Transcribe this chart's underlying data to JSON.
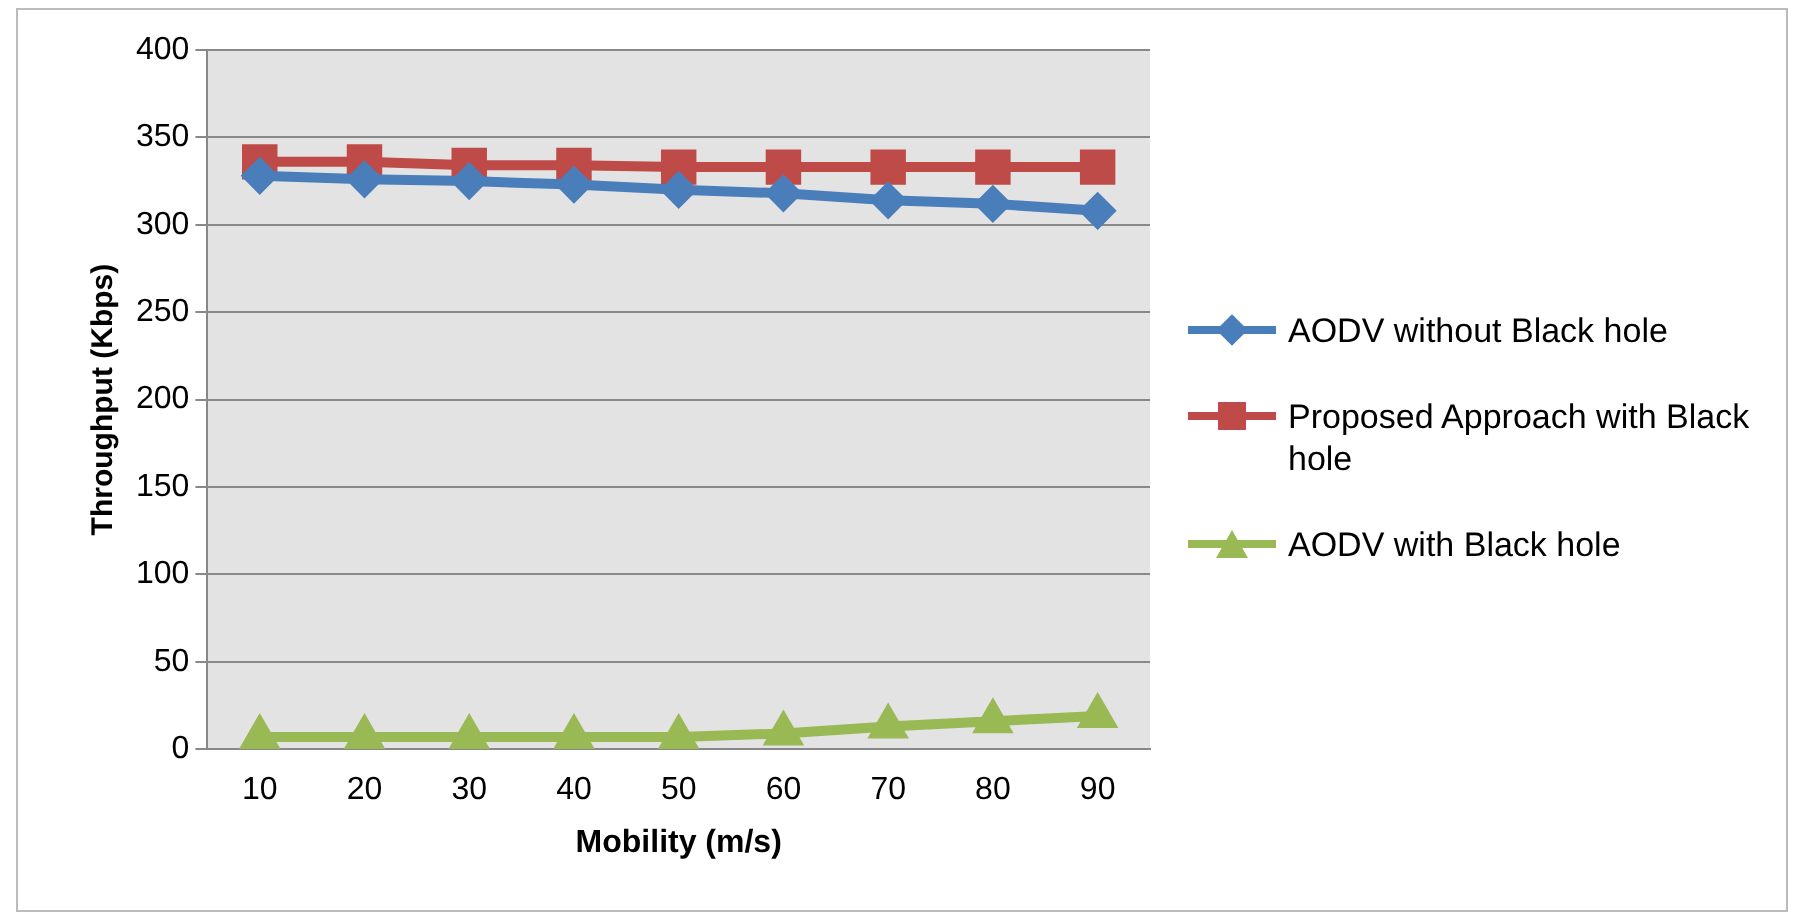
{
  "chart_data": {
    "type": "line",
    "xlabel": "Mobility (m/s)",
    "ylabel": "Throughput (Kbps)",
    "categories": [
      "10",
      "20",
      "30",
      "40",
      "50",
      "60",
      "70",
      "80",
      "90"
    ],
    "series": [
      {
        "name": "AODV without  Black hole",
        "color": "#4a7ebb",
        "marker": "diamond",
        "values": [
          328,
          326,
          325,
          323,
          320,
          318,
          314,
          312,
          308
        ]
      },
      {
        "name": "Proposed Approach with Black hole",
        "color": "#be4b48",
        "marker": "square",
        "values": [
          336,
          336,
          334,
          334,
          333,
          333,
          333,
          333,
          333
        ]
      },
      {
        "name": "AODV with  Black hole",
        "color": "#98b954",
        "marker": "triangle",
        "values": [
          7,
          7,
          7,
          7,
          7,
          9,
          13,
          16,
          19
        ]
      }
    ],
    "ylim": [
      0,
      400
    ],
    "yticks": [
      0,
      50,
      100,
      150,
      200,
      250,
      300,
      350,
      400
    ],
    "grid": "y",
    "legend": "right"
  }
}
